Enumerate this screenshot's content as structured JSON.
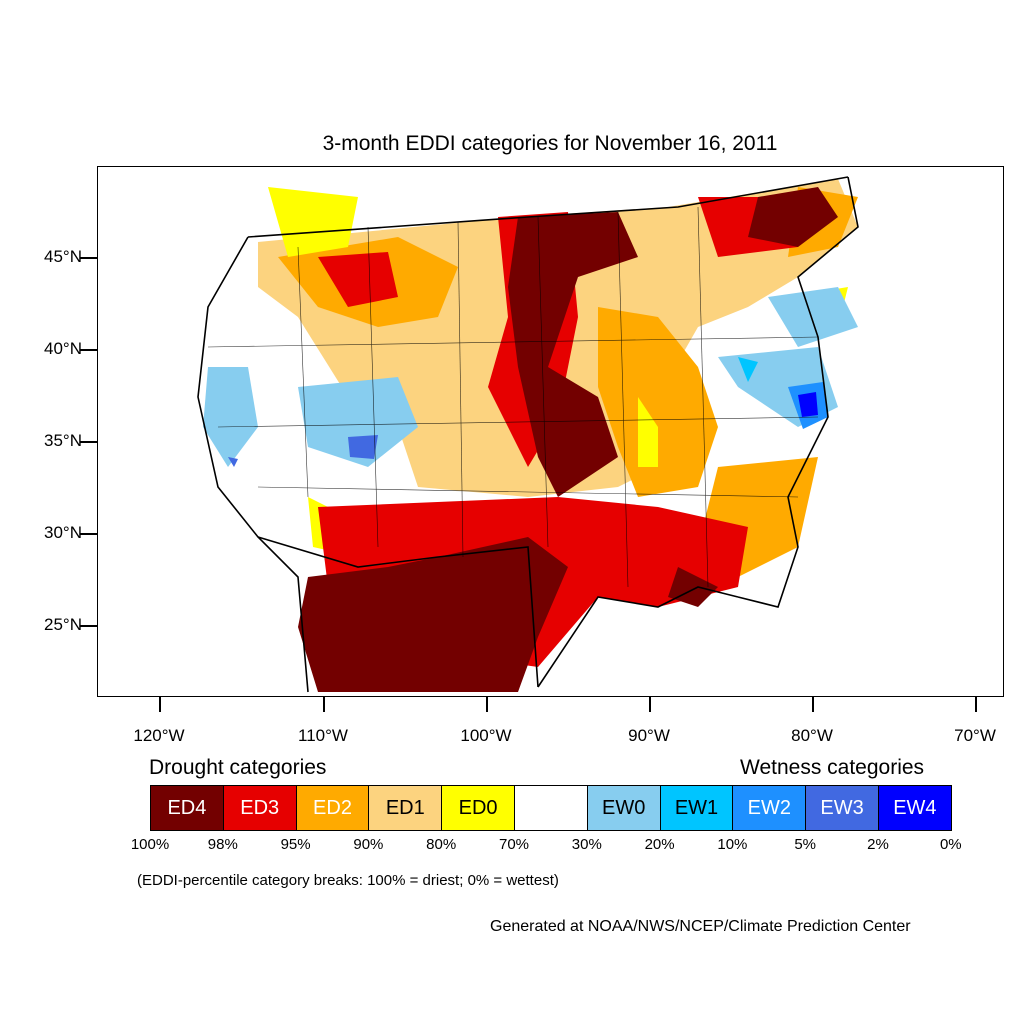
{
  "title": "3-month EDDI categories for November 16, 2011",
  "lat_labels": [
    "45°N",
    "40°N",
    "35°N",
    "30°N",
    "25°N"
  ],
  "lon_labels": [
    "120°W",
    "110°W",
    "100°W",
    "90°W",
    "80°W",
    "70°W"
  ],
  "legend": {
    "drought_heading": "Drought categories",
    "wetness_heading": "Wetness categories",
    "categories": [
      {
        "label": "ED4",
        "color": "#730000",
        "text_color": "#ffffff"
      },
      {
        "label": "ED3",
        "color": "#e60000",
        "text_color": "#ffffff"
      },
      {
        "label": "ED2",
        "color": "#ffaa00",
        "text_color": "#ffffff"
      },
      {
        "label": "ED1",
        "color": "#fcd37f",
        "text_color": "#000000"
      },
      {
        "label": "ED0",
        "color": "#ffff00",
        "text_color": "#000000"
      },
      {
        "label": "",
        "color": "#ffffff",
        "text_color": "#000000"
      },
      {
        "label": "EW0",
        "color": "#87cdef",
        "text_color": "#000000"
      },
      {
        "label": "EW1",
        "color": "#00c5ff",
        "text_color": "#000000"
      },
      {
        "label": "EW2",
        "color": "#1e90ff",
        "text_color": "#ffffff"
      },
      {
        "label": "EW3",
        "color": "#4169e1",
        "text_color": "#ffffff"
      },
      {
        "label": "EW4",
        "color": "#0000ff",
        "text_color": "#ffffff"
      }
    ],
    "breaks": [
      "100%",
      "98%",
      "95%",
      "90%",
      "80%",
      "70%",
      "30%",
      "20%",
      "10%",
      "5%",
      "2%",
      "0%"
    ]
  },
  "breaks_note": "(EDDI-percentile category breaks: 100% = driest; 0% = wettest)",
  "credit": "Generated at NOAA/NWS/NCEP/Climate Prediction Center"
}
